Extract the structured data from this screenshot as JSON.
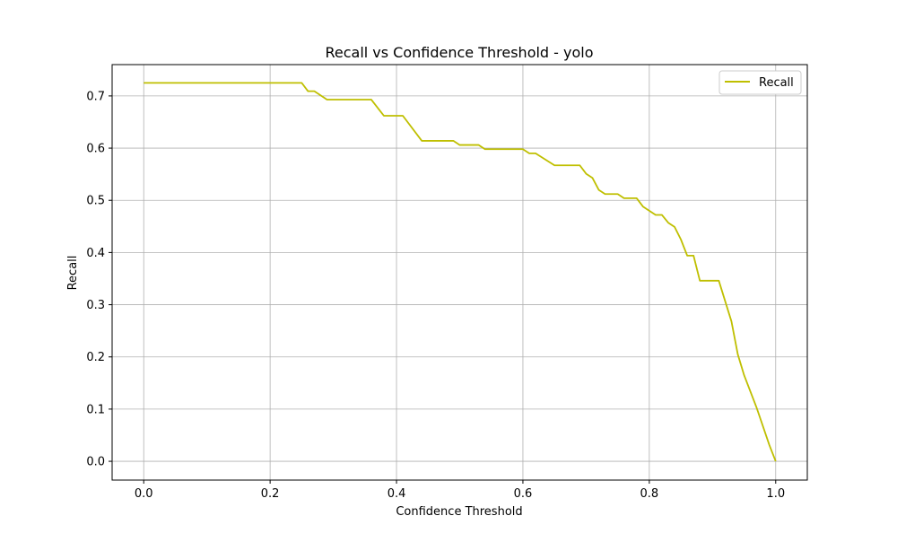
{
  "chart_data": {
    "type": "line",
    "title": "Recall vs Confidence Threshold - yolo",
    "xlabel": "Confidence Threshold",
    "ylabel": "Recall",
    "xlim": [
      -0.05,
      1.05
    ],
    "ylim": [
      -0.036,
      0.76
    ],
    "xticks": [
      0.0,
      0.2,
      0.4,
      0.6,
      0.8,
      1.0
    ],
    "xtick_labels": [
      "0.0",
      "0.2",
      "0.4",
      "0.6",
      "0.8",
      "1.0"
    ],
    "yticks": [
      0.0,
      0.1,
      0.2,
      0.3,
      0.4,
      0.5,
      0.6,
      0.7
    ],
    "ytick_labels": [
      "0.0",
      "0.1",
      "0.2",
      "0.3",
      "0.4",
      "0.5",
      "0.6",
      "0.7"
    ],
    "grid": true,
    "legend_position": "top-right",
    "series": [
      {
        "name": "Recall",
        "color": "#bfbf00",
        "x": [
          0.0,
          0.25,
          0.26,
          0.27,
          0.29,
          0.36,
          0.38,
          0.41,
          0.44,
          0.49,
          0.5,
          0.53,
          0.54,
          0.6,
          0.61,
          0.62,
          0.65,
          0.69,
          0.7,
          0.71,
          0.72,
          0.73,
          0.75,
          0.76,
          0.78,
          0.79,
          0.81,
          0.82,
          0.83,
          0.84,
          0.85,
          0.86,
          0.87,
          0.88,
          0.91,
          0.93,
          0.94,
          0.95,
          0.97,
          0.99,
          1.0
        ],
        "values": [
          0.725,
          0.725,
          0.709,
          0.709,
          0.693,
          0.693,
          0.662,
          0.662,
          0.614,
          0.614,
          0.606,
          0.606,
          0.598,
          0.598,
          0.59,
          0.59,
          0.567,
          0.567,
          0.551,
          0.543,
          0.52,
          0.512,
          0.512,
          0.504,
          0.504,
          0.488,
          0.472,
          0.472,
          0.457,
          0.449,
          0.425,
          0.394,
          0.394,
          0.346,
          0.346,
          0.268,
          0.205,
          0.165,
          0.102,
          0.031,
          0.0
        ]
      }
    ]
  }
}
